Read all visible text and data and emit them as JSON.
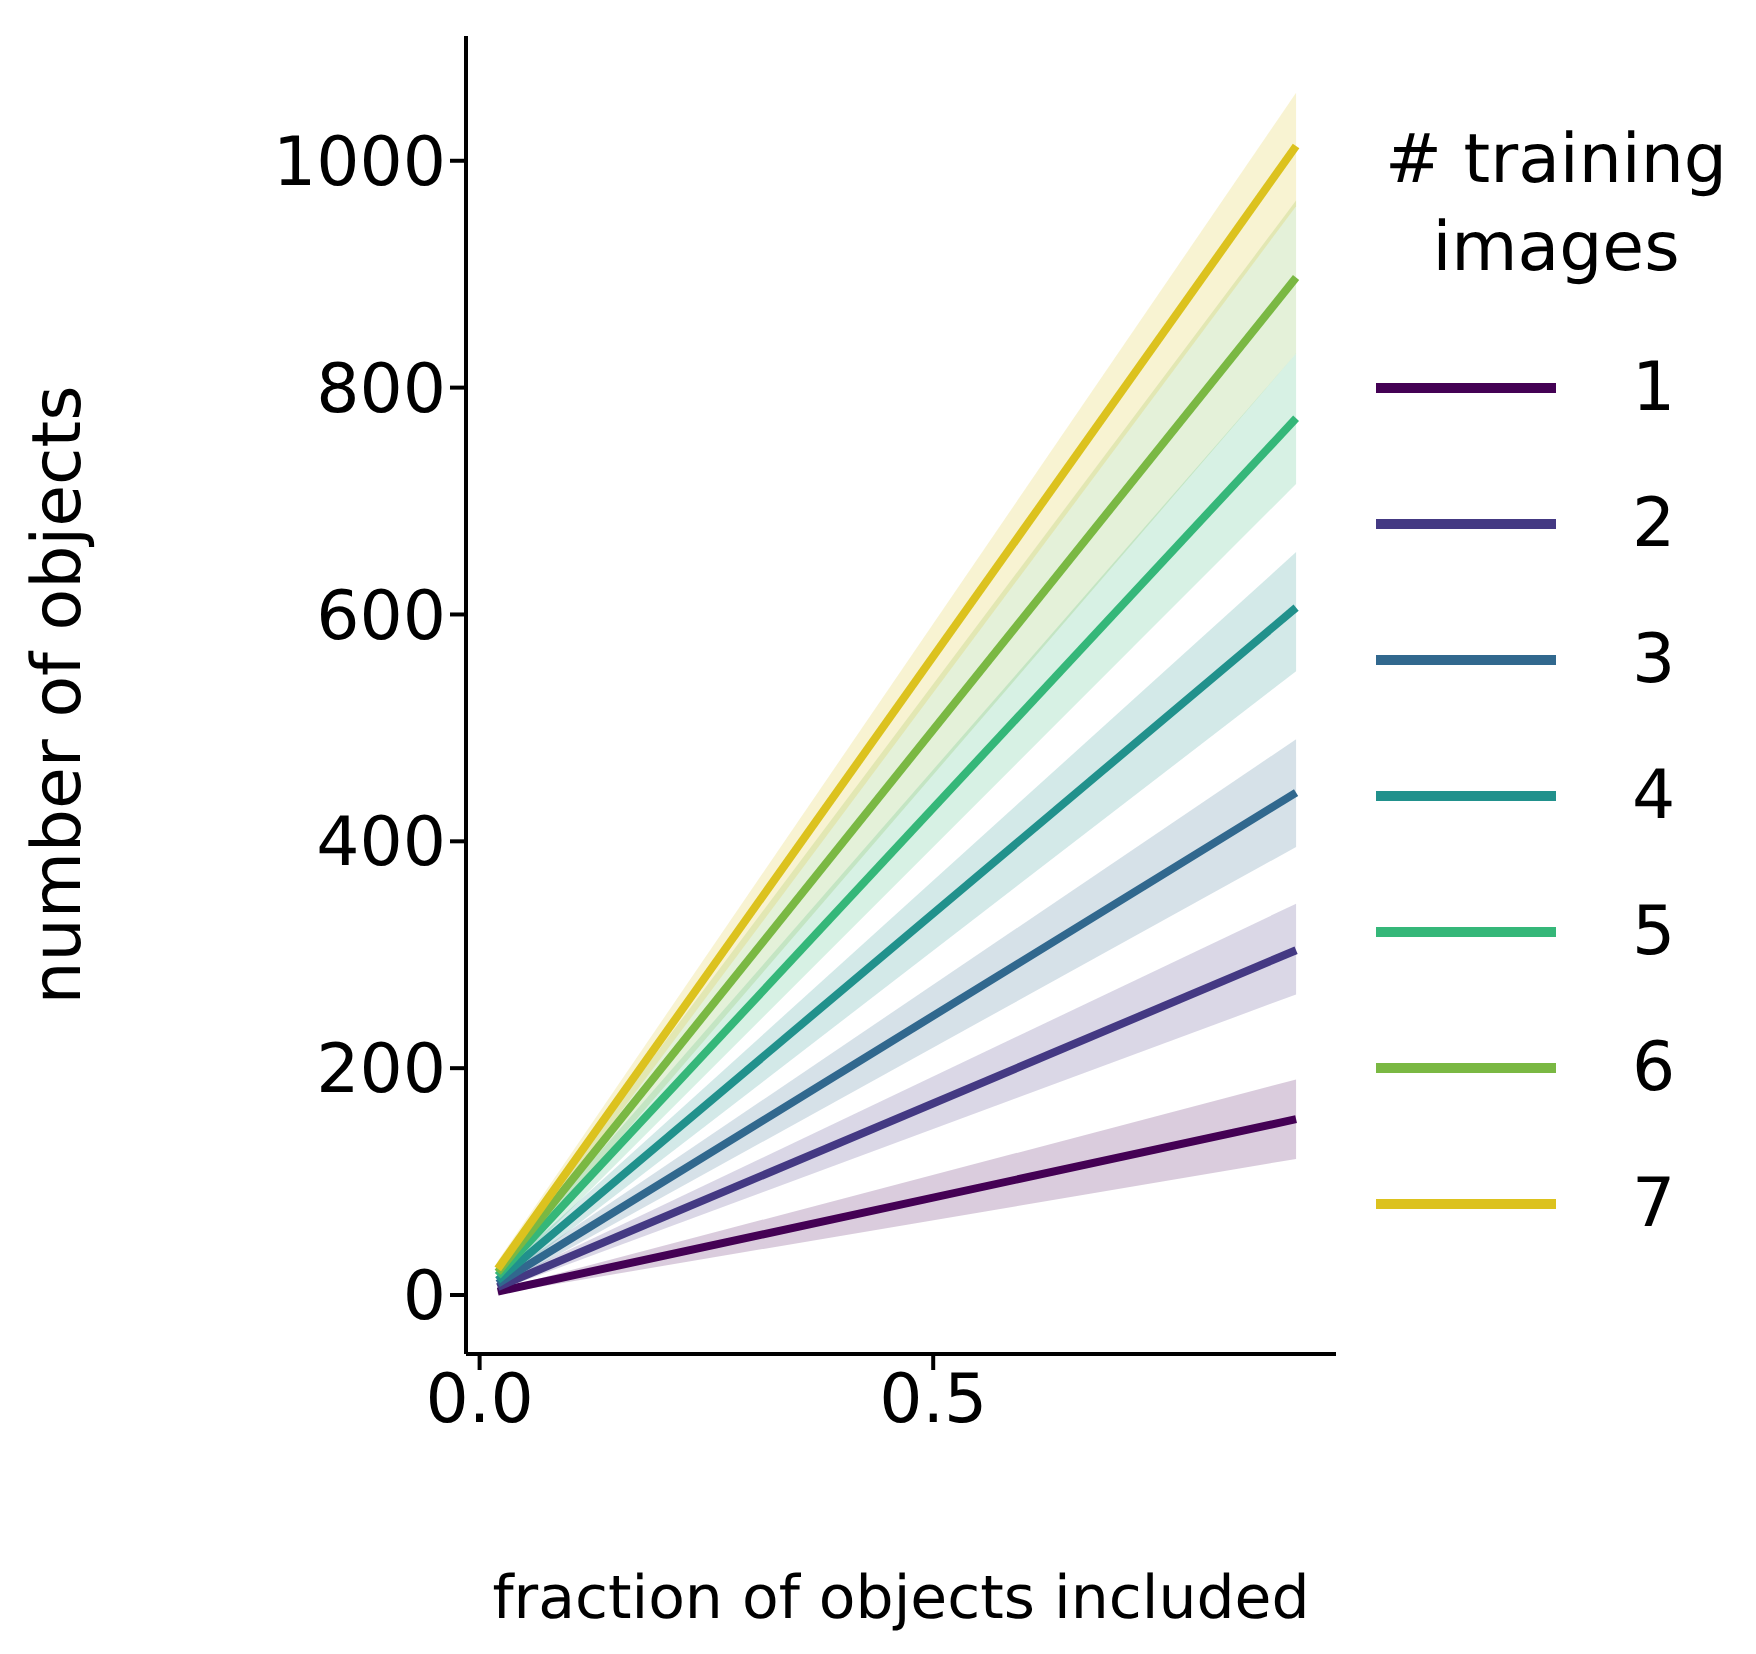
{
  "chart_data": {
    "type": "line",
    "xlabel": "fraction of objects included",
    "ylabel": "number of objects",
    "legend_title": "# training images",
    "legend": "right",
    "x": [
      0.02,
      0.9
    ],
    "xlim": [
      -0.015,
      0.944
    ],
    "xticks": [
      {
        "value": 0,
        "label": "0.0"
      },
      {
        "value": 0.5,
        "label": "0.5"
      }
    ],
    "ylim": [
      -52,
      1110
    ],
    "yticks": [
      0,
      200,
      400,
      600,
      800,
      1000
    ],
    "grid": false,
    "series": [
      {
        "name": "1",
        "color": "#440154",
        "values": [
          3,
          155
        ],
        "lower": [
          1,
          120
        ],
        "upper": [
          5,
          190
        ]
      },
      {
        "name": "2",
        "color": "#443983",
        "values": [
          7,
          304
        ],
        "lower": [
          4,
          265
        ],
        "upper": [
          10,
          345
        ]
      },
      {
        "name": "3",
        "color": "#31688e",
        "values": [
          10,
          443
        ],
        "lower": [
          6,
          395
        ],
        "upper": [
          14,
          490
        ]
      },
      {
        "name": "4",
        "color": "#21918c",
        "values": [
          13,
          606
        ],
        "lower": [
          8,
          550
        ],
        "upper": [
          18,
          655
        ]
      },
      {
        "name": "5",
        "color": "#35b779",
        "values": [
          17,
          773
        ],
        "lower": [
          11,
          715
        ],
        "upper": [
          23,
          830
        ]
      },
      {
        "name": "6",
        "color": "#7ab843",
        "values": [
          20,
          897
        ],
        "lower": [
          13,
          830
        ],
        "upper": [
          27,
          965
        ]
      },
      {
        "name": "7",
        "color": "#dcc21e",
        "values": [
          23,
          1013
        ],
        "lower": [
          16,
          960
        ],
        "upper": [
          30,
          1060
        ]
      }
    ]
  }
}
